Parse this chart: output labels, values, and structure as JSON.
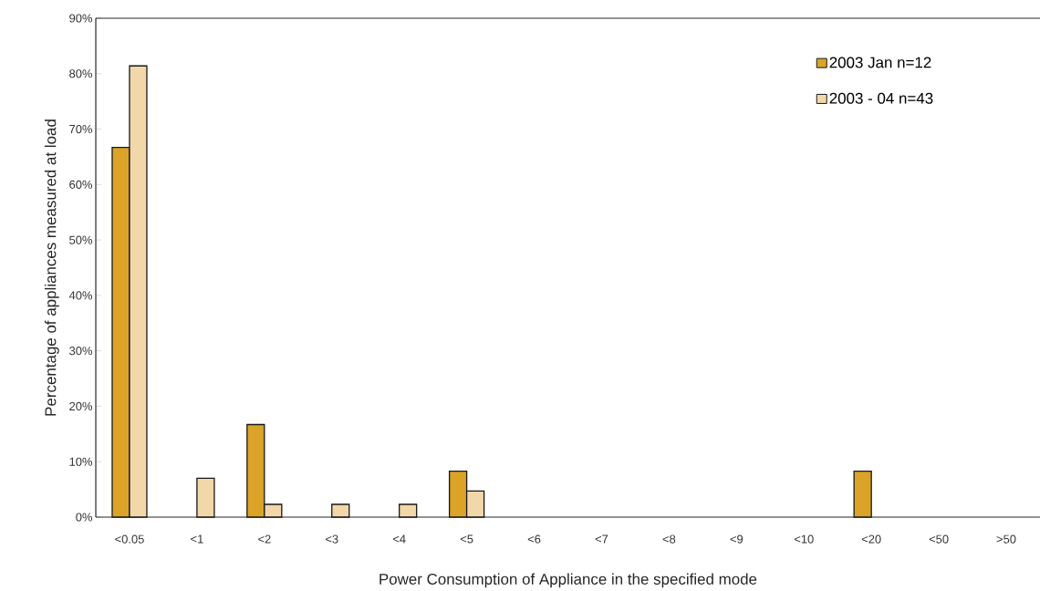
{
  "chart_data": {
    "type": "bar",
    "xlabel": "Power Consumption of Appliance in the specified mode",
    "ylabel": "Percentage of appliances measured at load",
    "categories": [
      "<0.05",
      "<1",
      "<2",
      "<3",
      "<4",
      "<5",
      "<6",
      "<7",
      "<8",
      "<9",
      "<10",
      "<20",
      "<50",
      ">50"
    ],
    "series": [
      {
        "name": "2003 Jan   n=12",
        "color": "#dba328",
        "values": [
          66.7,
          0,
          16.7,
          0,
          0,
          8.3,
          0,
          0,
          0,
          0,
          0,
          8.3,
          0,
          0
        ]
      },
      {
        "name": "2003 - 04   n=43",
        "color": "#f2d7a9",
        "values": [
          81.4,
          7.0,
          2.3,
          2.3,
          2.3,
          4.7,
          0,
          0,
          0,
          0,
          0,
          0,
          0,
          0
        ]
      }
    ],
    "ylim": [
      0,
      90
    ],
    "yticks": [
      {
        "value": 0,
        "label": "0%"
      },
      {
        "value": 10,
        "label": "10%"
      },
      {
        "value": 20,
        "label": "20%"
      },
      {
        "value": 30,
        "label": "30%"
      },
      {
        "value": 40,
        "label": "40%"
      },
      {
        "value": 50,
        "label": "50%"
      },
      {
        "value": 60,
        "label": "60%"
      },
      {
        "value": 70,
        "label": "70%"
      },
      {
        "value": 80,
        "label": "80%"
      },
      {
        "value": 90,
        "label": "90%"
      }
    ],
    "grid": false,
    "legend": "top right"
  }
}
